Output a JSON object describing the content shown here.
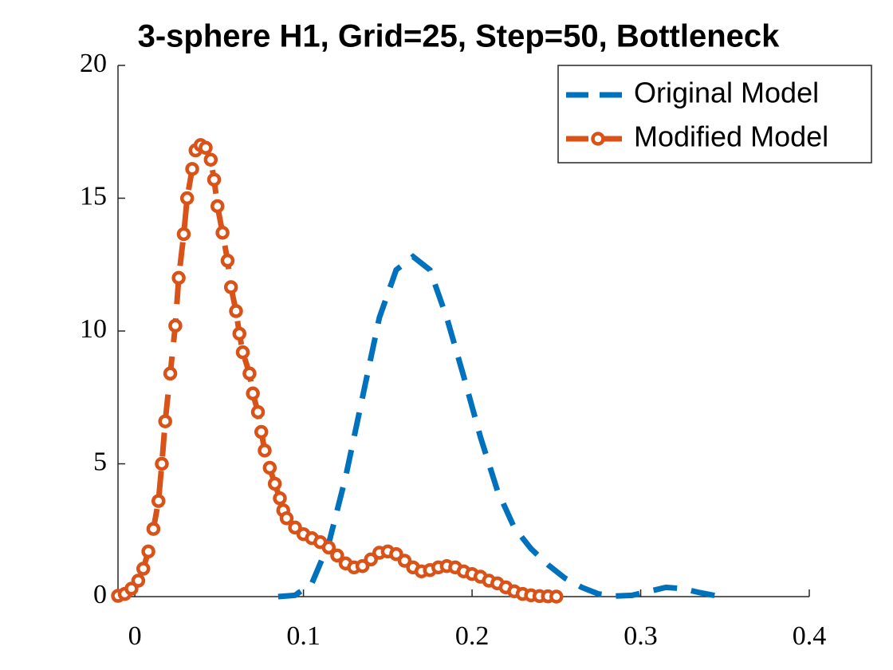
{
  "chart_data": {
    "type": "line",
    "title": "3-sphere H1, Grid=25, Step=50, Bottleneck",
    "xlim": [
      -0.01,
      0.4
    ],
    "ylim": [
      0,
      20
    ],
    "xticks": [
      0,
      0.1,
      0.2,
      0.3,
      0.4
    ],
    "yticks": [
      0,
      5,
      10,
      15,
      20
    ],
    "grid": false,
    "legend": "northeast",
    "series": [
      {
        "name": "Original Model",
        "color": "#0072BD",
        "style": "dashed",
        "marker": "none",
        "x": [
          0.085,
          0.095,
          0.105,
          0.115,
          0.125,
          0.135,
          0.145,
          0.155,
          0.165,
          0.175,
          0.185,
          0.195,
          0.205,
          0.215,
          0.225,
          0.235,
          0.245,
          0.255,
          0.265,
          0.275,
          0.285,
          0.295,
          0.305,
          0.315,
          0.325,
          0.335,
          0.345,
          0.35
        ],
        "values": [
          0,
          0.05,
          0.5,
          2,
          4.5,
          7.5,
          10.5,
          12.3,
          12.8,
          12.3,
          10.5,
          8.3,
          6,
          4,
          2.6,
          1.8,
          1.2,
          0.7,
          0.35,
          0.1,
          0.02,
          0.05,
          0.2,
          0.35,
          0.3,
          0.15,
          0.03,
          0
        ]
      },
      {
        "name": "Modified Model",
        "color": "#D95319",
        "style": "dashed",
        "marker": "circle",
        "x": [
          -0.01,
          -0.006,
          -0.002,
          0.002,
          0.005,
          0.008,
          0.011,
          0.014,
          0.016,
          0.018,
          0.021,
          0.024,
          0.026,
          0.029,
          0.031,
          0.034,
          0.036,
          0.039,
          0.042,
          0.045,
          0.047,
          0.049,
          0.052,
          0.055,
          0.057,
          0.06,
          0.062,
          0.064,
          0.068,
          0.07,
          0.073,
          0.075,
          0.077,
          0.08,
          0.083,
          0.086,
          0.088,
          0.09,
          0.095,
          0.1,
          0.105,
          0.11,
          0.115,
          0.12,
          0.125,
          0.13,
          0.135,
          0.14,
          0.145,
          0.15,
          0.155,
          0.16,
          0.165,
          0.17,
          0.175,
          0.18,
          0.185,
          0.19,
          0.195,
          0.2,
          0.205,
          0.21,
          0.215,
          0.22,
          0.225,
          0.23,
          0.235,
          0.24,
          0.245,
          0.25
        ],
        "values": [
          0.03,
          0.1,
          0.3,
          0.6,
          1.05,
          1.7,
          2.55,
          3.6,
          5,
          6.6,
          8.4,
          10.2,
          12,
          13.65,
          15,
          16.1,
          16.8,
          17,
          16.9,
          16.45,
          15.7,
          14.7,
          13.7,
          12.65,
          11.65,
          10.75,
          9.9,
          9.2,
          8.4,
          7.65,
          6.95,
          6.2,
          5.5,
          4.85,
          4.25,
          3.7,
          3.25,
          2.95,
          2.6,
          2.35,
          2.2,
          2.05,
          1.85,
          1.55,
          1.25,
          1.1,
          1.15,
          1.4,
          1.65,
          1.7,
          1.6,
          1.35,
          1.1,
          0.95,
          1,
          1.1,
          1.15,
          1.1,
          0.95,
          0.85,
          0.75,
          0.6,
          0.5,
          0.35,
          0.2,
          0.1,
          0.05,
          0.02,
          0.01,
          0
        ]
      }
    ]
  }
}
